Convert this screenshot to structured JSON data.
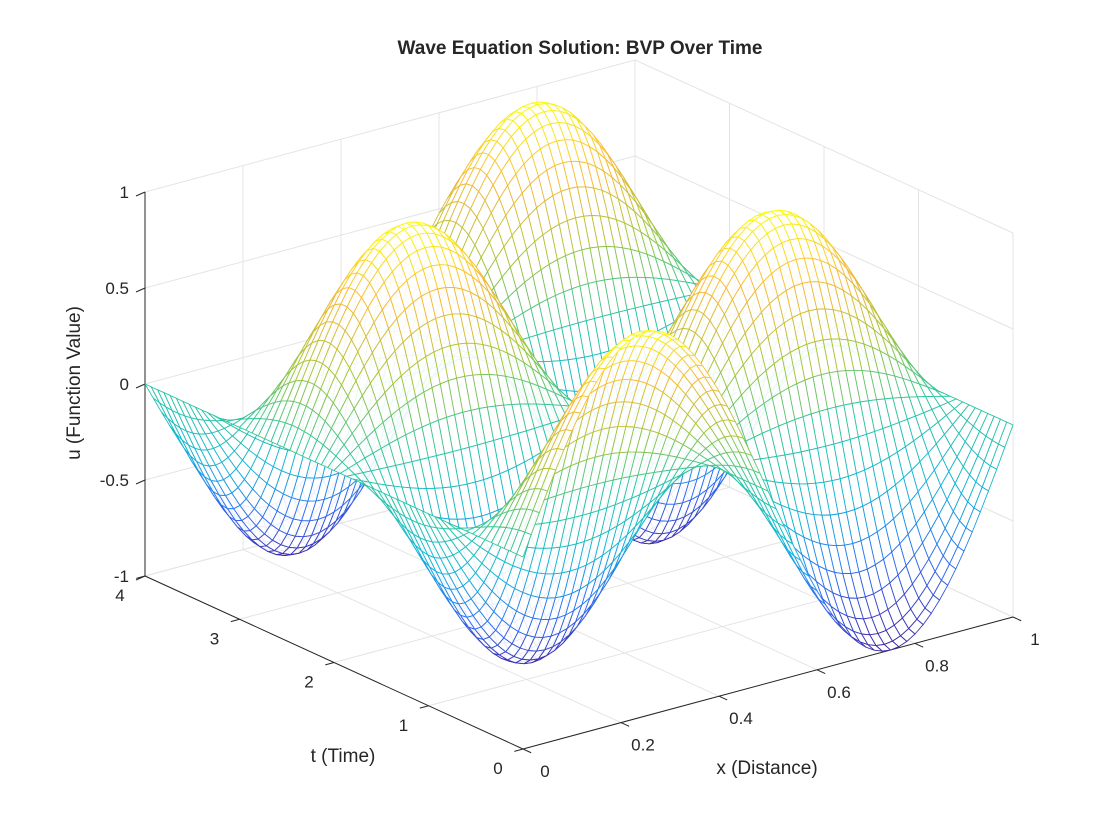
{
  "chart_data": {
    "type": "surface",
    "title": "Wave Equation Solution: BVP Over Time",
    "xlabel": "x (Distance)",
    "ylabel": "t (Time)",
    "zlabel": "u (Function Value)",
    "xlim": [
      0,
      1
    ],
    "tlim": [
      0,
      4
    ],
    "zlim": [
      -1,
      1
    ],
    "x_ticks": [
      "0",
      "0.2",
      "0.4",
      "0.6",
      "0.8",
      "1"
    ],
    "t_ticks": [
      "0",
      "1",
      "2",
      "3",
      "4"
    ],
    "z_ticks": [
      "-1",
      "-0.5",
      "0",
      "0.5",
      "1"
    ],
    "function": "u(x,t) = sin(2*pi*x) * cos(2*pi*t / 2.5)",
    "x_samples": 61,
    "t_samples": 61,
    "colormap": "parula",
    "colormap_stops": [
      "#3e26a8",
      "#2f6df3",
      "#14b6d6",
      "#2dc5a2",
      "#a9c438",
      "#f7b83b",
      "#f9fb15"
    ],
    "grid": true
  }
}
